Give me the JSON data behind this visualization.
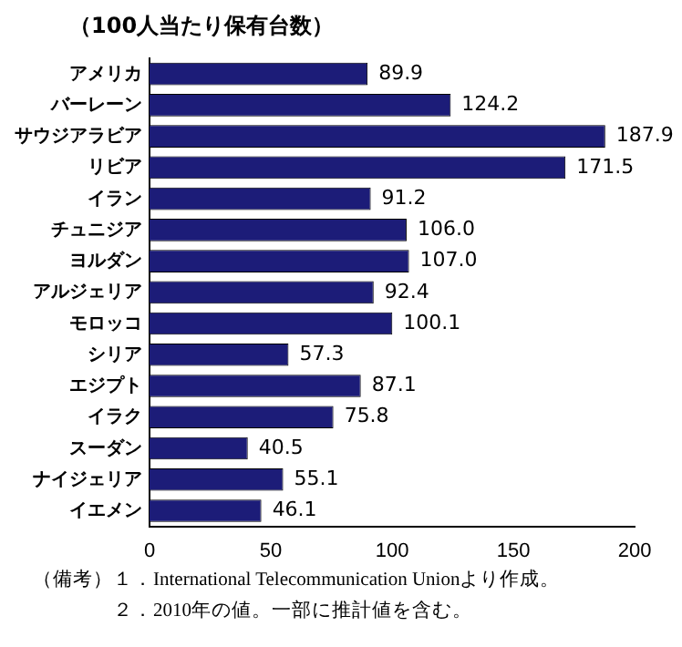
{
  "chart_data": {
    "type": "bar",
    "orientation": "horizontal",
    "title": "（100人当たり保有台数）",
    "categories": [
      "アメリカ",
      "バーレーン",
      "サウジアラビア",
      "リビア",
      "イラン",
      "チュニジア",
      "ヨルダン",
      "アルジェリア",
      "モロッコ",
      "シリア",
      "エジプト",
      "イラク",
      "スーダン",
      "ナイジェリア",
      "イエメン"
    ],
    "values": [
      89.9,
      124.2,
      187.9,
      171.5,
      91.2,
      106.0,
      107.0,
      92.4,
      100.1,
      57.3,
      87.1,
      75.8,
      40.5,
      55.1,
      46.1
    ],
    "value_labels": [
      "89.9",
      "124.2",
      "187.9",
      "171.5",
      "91.2",
      "106.0",
      "107.0",
      "92.4",
      "100.1",
      "57.3",
      "87.1",
      "75.8",
      "40.5",
      "55.1",
      "46.1"
    ],
    "color": "#1c1c78",
    "xlim": [
      0,
      200
    ],
    "xticks": [
      0,
      50,
      100,
      150,
      200
    ],
    "grid": false,
    "legend": false,
    "annotations": [
      "（備考）１．International Telecommunication Unionより作成。",
      "　　　　２．2010年の値。一部に推計値を含む。"
    ]
  }
}
